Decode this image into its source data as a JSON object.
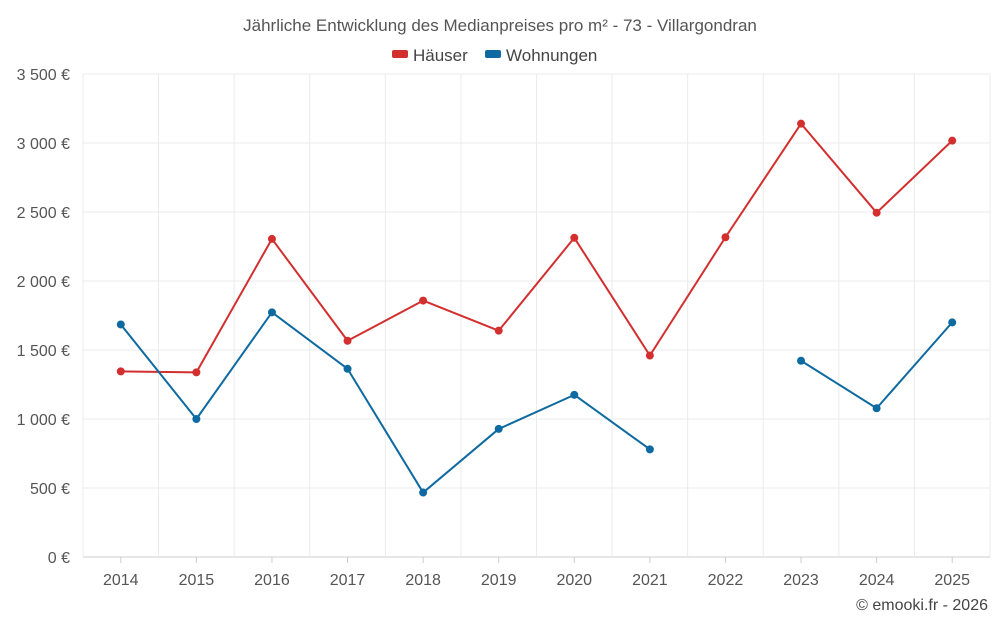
{
  "chart_data": {
    "type": "line",
    "title": "Jährliche Entwicklung des Medianpreises pro m² - 73 - Villargondran",
    "categories": [
      "2014",
      "2015",
      "2016",
      "2017",
      "2018",
      "2019",
      "2020",
      "2021",
      "2022",
      "2023",
      "2024",
      "2025"
    ],
    "series": [
      {
        "name": "Häuser",
        "color": "#d32f2f",
        "values": [
          1345,
          1338,
          2305,
          1567,
          1858,
          1640,
          2313,
          1460,
          2317,
          3140,
          2495,
          3017
        ]
      },
      {
        "name": "Wohnungen",
        "color": "#0e6aa0",
        "values": [
          1685,
          1000,
          1773,
          1364,
          467,
          928,
          1175,
          780,
          null,
          1422,
          1078,
          1700
        ]
      }
    ],
    "ylim": [
      0,
      3500
    ],
    "yticks": [
      0,
      500,
      1000,
      1500,
      2000,
      2500,
      3000,
      3500
    ],
    "ytick_labels": [
      "0 €",
      "500 €",
      "1 000 €",
      "1 500 €",
      "2 000 €",
      "2 500 €",
      "3 000 €",
      "3 500 €"
    ],
    "grid": true,
    "legend": "top-center",
    "xlabel": "",
    "ylabel": ""
  },
  "credit": "© emooki.fr - 2026"
}
